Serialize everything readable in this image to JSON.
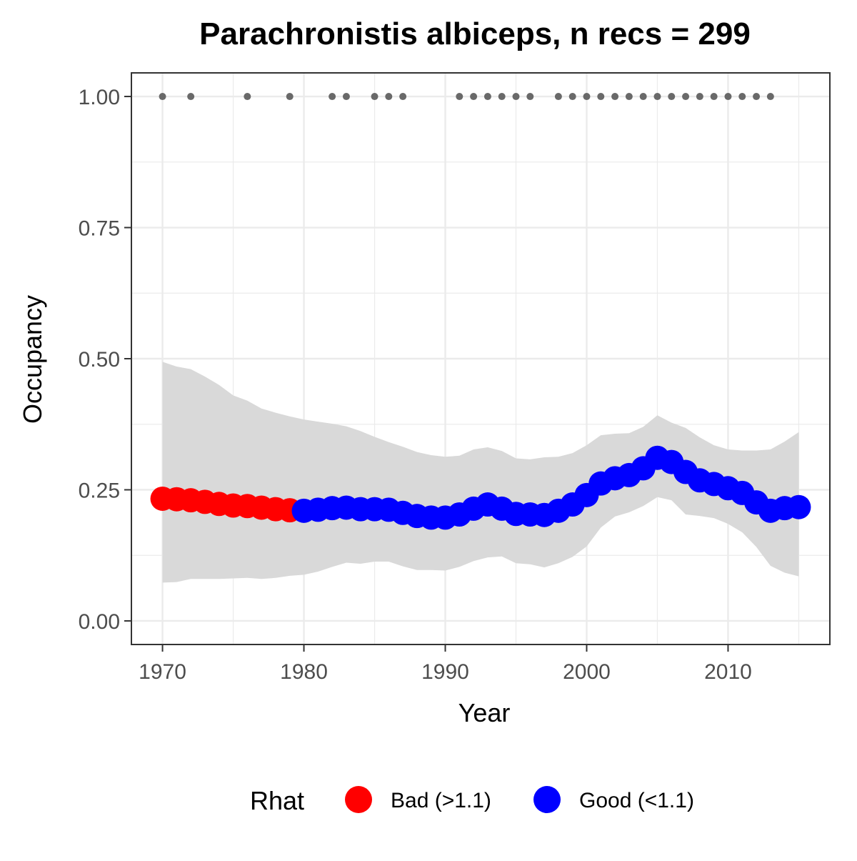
{
  "chart_data": {
    "type": "line",
    "title": "Parachronistis albiceps, n recs = 299",
    "xlabel": "Year",
    "ylabel": "Occupancy",
    "xlim": [
      1967.8,
      2017.2
    ],
    "ylim": [
      -0.045,
      1.045
    ],
    "x_ticks": [
      1970,
      1980,
      1990,
      2000,
      2010
    ],
    "x_tick_labels": [
      "1970",
      "1980",
      "1990",
      "2000",
      "2010"
    ],
    "y_ticks": [
      0,
      0.25,
      0.5,
      0.75,
      1.0
    ],
    "y_tick_labels": [
      "0.00",
      "0.25",
      "0.50",
      "0.75",
      "1.00"
    ],
    "grid": true,
    "legend": {
      "title": "Rhat",
      "position": "bottom",
      "items": [
        {
          "label": "Bad (>1.1)",
          "color": "#ff0000"
        },
        {
          "label": "Good (<1.1)",
          "color": "#0000ff"
        }
      ]
    },
    "series": [
      {
        "x": [
          1970,
          1971,
          1972,
          1973,
          1974,
          1975,
          1976,
          1977,
          1978,
          1979,
          1980,
          1981,
          1982,
          1983,
          1984,
          1985,
          1986,
          1987,
          1988,
          1989,
          1990,
          1991,
          1992,
          1993,
          1994,
          1995,
          1996,
          1997,
          1998,
          1999,
          2000,
          2001,
          2002,
          2003,
          2004,
          2005,
          2006,
          2007,
          2008,
          2009,
          2010,
          2011,
          2012,
          2013,
          2014,
          2015
        ],
        "mean": [
          0.233,
          0.232,
          0.23,
          0.227,
          0.223,
          0.22,
          0.219,
          0.216,
          0.213,
          0.211,
          0.21,
          0.212,
          0.215,
          0.216,
          0.213,
          0.213,
          0.212,
          0.206,
          0.2,
          0.197,
          0.197,
          0.203,
          0.214,
          0.222,
          0.214,
          0.204,
          0.203,
          0.202,
          0.21,
          0.222,
          0.24,
          0.262,
          0.272,
          0.278,
          0.291,
          0.311,
          0.303,
          0.284,
          0.268,
          0.261,
          0.253,
          0.244,
          0.226,
          0.21,
          0.215,
          0.217
        ],
        "lower": [
          0.073,
          0.074,
          0.08,
          0.08,
          0.08,
          0.081,
          0.082,
          0.08,
          0.082,
          0.086,
          0.088,
          0.094,
          0.103,
          0.111,
          0.109,
          0.113,
          0.113,
          0.104,
          0.097,
          0.097,
          0.096,
          0.103,
          0.114,
          0.121,
          0.123,
          0.11,
          0.108,
          0.102,
          0.11,
          0.122,
          0.142,
          0.178,
          0.199,
          0.207,
          0.219,
          0.236,
          0.23,
          0.203,
          0.2,
          0.196,
          0.185,
          0.169,
          0.141,
          0.105,
          0.092,
          0.085
        ],
        "upper": [
          0.494,
          0.485,
          0.48,
          0.466,
          0.45,
          0.43,
          0.42,
          0.405,
          0.397,
          0.39,
          0.384,
          0.38,
          0.376,
          0.371,
          0.362,
          0.351,
          0.341,
          0.332,
          0.322,
          0.316,
          0.313,
          0.315,
          0.327,
          0.331,
          0.324,
          0.31,
          0.308,
          0.312,
          0.313,
          0.32,
          0.335,
          0.354,
          0.357,
          0.358,
          0.37,
          0.392,
          0.378,
          0.368,
          0.35,
          0.335,
          0.327,
          0.325,
          0.325,
          0.327,
          0.342,
          0.36
        ],
        "rhat": [
          "Bad (>1.1)",
          "Bad (>1.1)",
          "Bad (>1.1)",
          "Bad (>1.1)",
          "Bad (>1.1)",
          "Bad (>1.1)",
          "Bad (>1.1)",
          "Bad (>1.1)",
          "Bad (>1.1)",
          "Bad (>1.1)",
          "Good (<1.1)",
          "Good (<1.1)",
          "Good (<1.1)",
          "Good (<1.1)",
          "Good (<1.1)",
          "Good (<1.1)",
          "Good (<1.1)",
          "Good (<1.1)",
          "Good (<1.1)",
          "Good (<1.1)",
          "Good (<1.1)",
          "Good (<1.1)",
          "Good (<1.1)",
          "Good (<1.1)",
          "Good (<1.1)",
          "Good (<1.1)",
          "Good (<1.1)",
          "Good (<1.1)",
          "Good (<1.1)",
          "Good (<1.1)",
          "Good (<1.1)",
          "Good (<1.1)",
          "Good (<1.1)",
          "Good (<1.1)",
          "Good (<1.1)",
          "Good (<1.1)",
          "Good (<1.1)",
          "Good (<1.1)",
          "Good (<1.1)",
          "Good (<1.1)",
          "Good (<1.1)",
          "Good (<1.1)",
          "Good (<1.1)",
          "Good (<1.1)",
          "Good (<1.1)",
          "Good (<1.1)"
        ]
      }
    ],
    "record_years": [
      1970,
      1972,
      1976,
      1979,
      1982,
      1983,
      1985,
      1986,
      1987,
      1991,
      1992,
      1993,
      1994,
      1995,
      1996,
      1998,
      1999,
      2000,
      2001,
      2002,
      2003,
      2004,
      2005,
      2006,
      2007,
      2008,
      2009,
      2010,
      2011,
      2012,
      2013
    ],
    "record_value": 1.0,
    "colors": {
      "ribbon": "#d9d9d9",
      "record_points": "#696969",
      "grid": "#ebebeb",
      "panel_border": "#333333"
    }
  }
}
